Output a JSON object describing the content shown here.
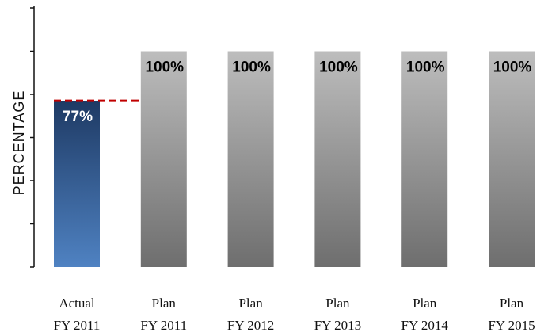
{
  "chart_data": {
    "type": "bar",
    "ylabel": "PERCENTAGE",
    "ylim": [
      0,
      120
    ],
    "categories": [
      [
        "Actual",
        "FY 2011"
      ],
      [
        "Plan",
        "FY 2011"
      ],
      [
        "Plan",
        "FY 2012"
      ],
      [
        "Plan",
        "FY 2013"
      ],
      [
        "Plan",
        "FY 2014"
      ],
      [
        "Plan",
        "FY 2015"
      ]
    ],
    "values": [
      77,
      100,
      100,
      100,
      100,
      100
    ],
    "data_labels": [
      "77%",
      "100%",
      "100%",
      "100%",
      "100%",
      "100%"
    ],
    "reference_line": {
      "value": 77,
      "style": "dashed",
      "color": "#c00000"
    },
    "grid": false,
    "colors": {
      "actual_top": "#1e3a64",
      "actual_bottom": "#4f82c2",
      "plan_top": "#bdbdbd",
      "plan_bottom": "#6e6e6e",
      "actual_label": "#ffffff",
      "plan_label": "#000000"
    }
  }
}
